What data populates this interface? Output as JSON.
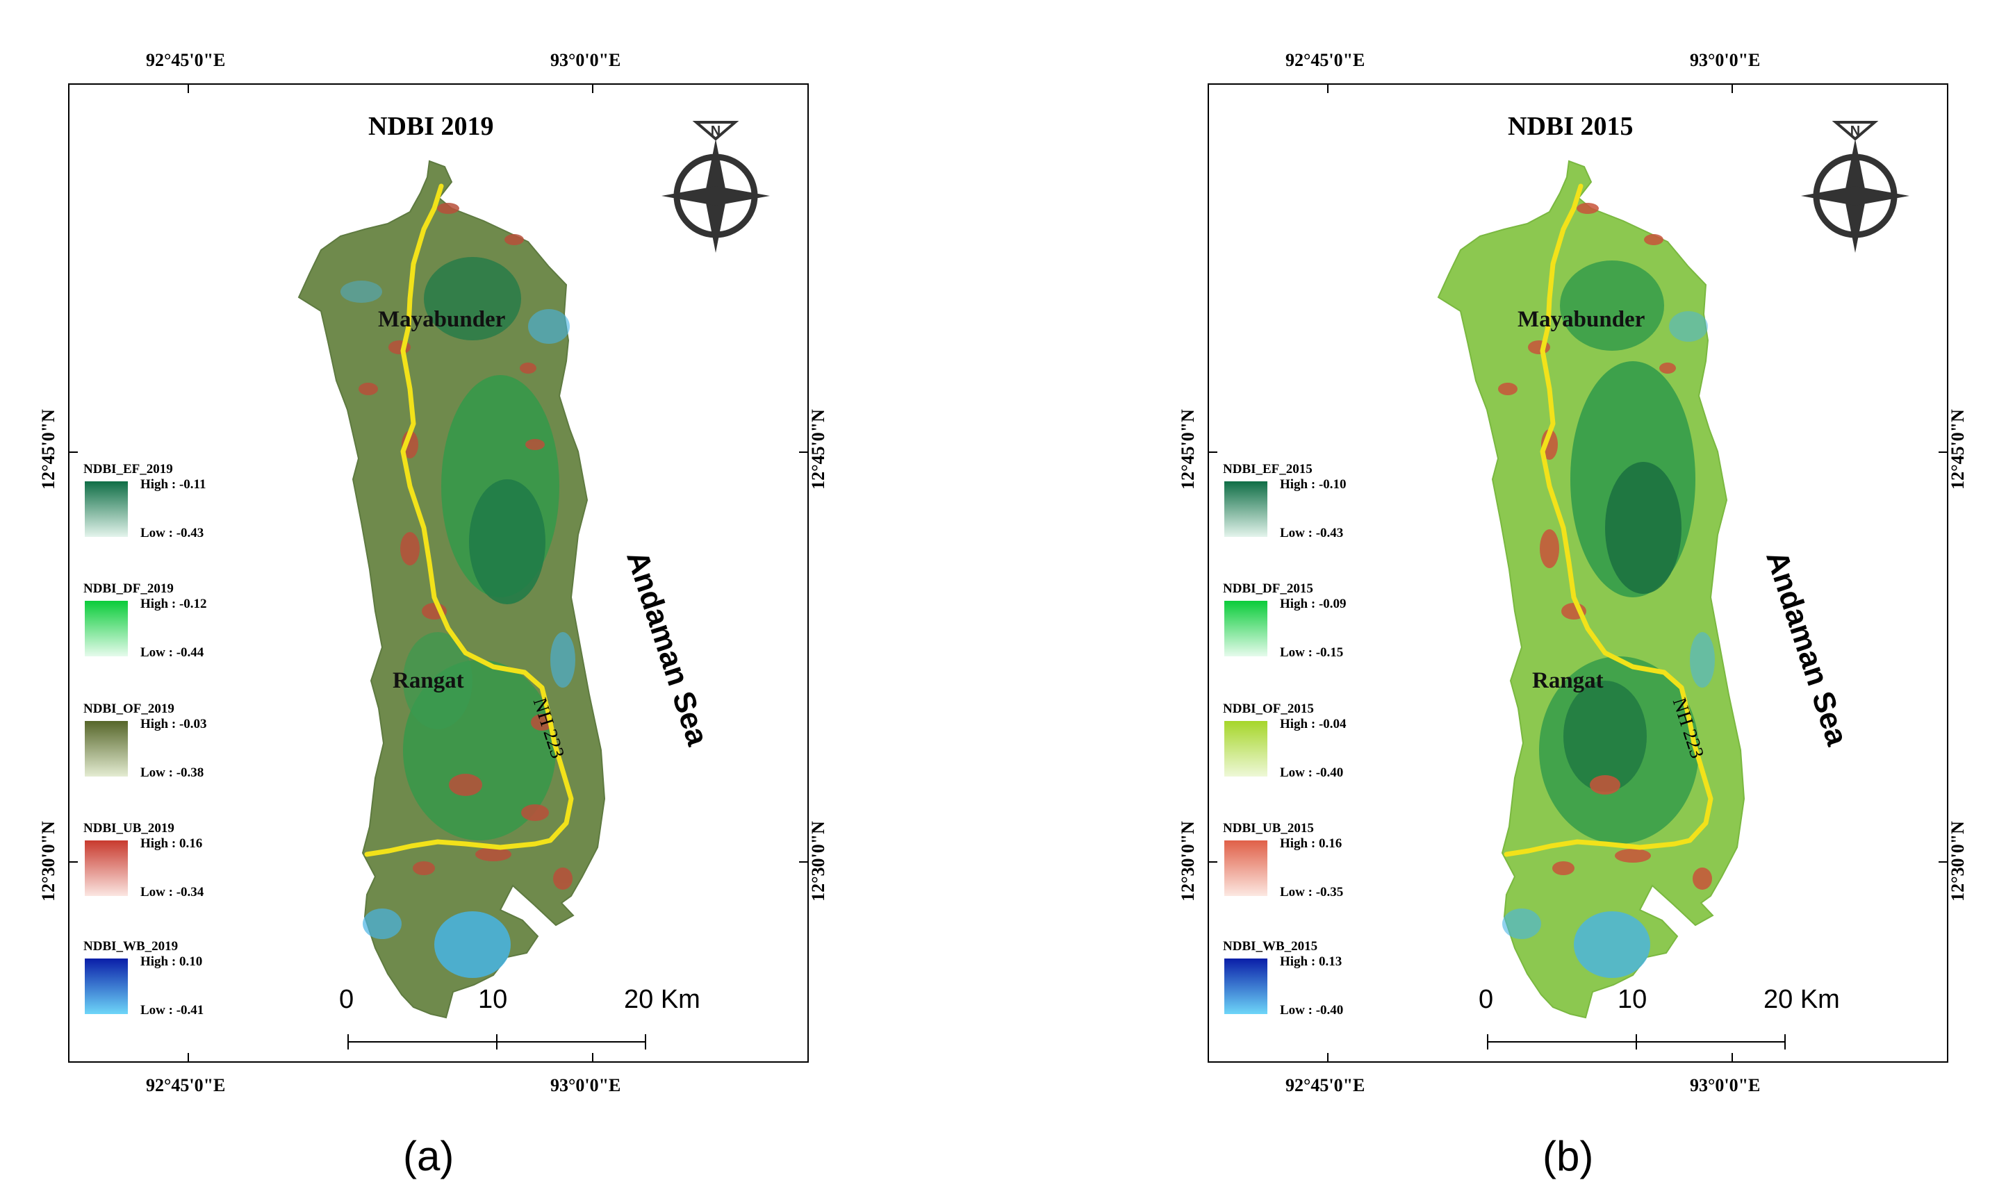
{
  "figure": {
    "panels": [
      {
        "caption": "(a)",
        "title": "NDBI 2019",
        "top_coords": [
          "92°45'0\"E",
          "93°0'0\"E"
        ],
        "bottom_coords": [
          "92°45'0\"E",
          "93°0'0\"E"
        ],
        "left_coords": [
          "12°45'0\"N",
          "12°30'0\"N"
        ],
        "right_coords": [
          "12°45'0\"N",
          "12°30'0\"N"
        ],
        "places": [
          "Mayabunder",
          "Rangat"
        ],
        "sea_label": "Andaman Sea",
        "road_label": "NH 223",
        "north_label": "N",
        "scale_labels": [
          "0",
          "10",
          "20 Km"
        ],
        "legend": [
          {
            "name": "NDBI_EF_2019",
            "high": "High : -0.11",
            "low": "Low : -0.43",
            "color_high": "#0f6e46",
            "color_low": "#e4f4ec"
          },
          {
            "name": "NDBI_DF_2019",
            "high": "High : -0.12",
            "low": "Low : -0.44",
            "color_high": "#0bcc3a",
            "color_low": "#e6fbec"
          },
          {
            "name": "NDBI_OF_2019",
            "high": "High : -0.03",
            "low": "Low : -0.38",
            "color_high": "#56662a",
            "color_low": "#e4ecd2"
          },
          {
            "name": "NDBI_UB_2019",
            "high": "High : 0.16",
            "low": "Low : -0.34",
            "color_high": "#c83a2e",
            "color_low": "#fbe6e2"
          },
          {
            "name": "NDBI_WB_2019",
            "high": "High : 0.10",
            "low": "Low : -0.41",
            "color_high": "#0a1ea8",
            "color_low": "#6ed6f8"
          }
        ]
      },
      {
        "caption": "(b)",
        "title": "NDBI 2015",
        "top_coords": [
          "92°45'0\"E",
          "93°0'0\"E"
        ],
        "bottom_coords": [
          "92°45'0\"E",
          "93°0'0\"E"
        ],
        "left_coords": [
          "12°45'0\"N",
          "12°30'0\"N"
        ],
        "right_coords": [
          "12°45'0\"N",
          "12°30'0\"N"
        ],
        "places": [
          "Mayabunder",
          "Rangat"
        ],
        "sea_label": "Andaman Sea",
        "road_label": "NH 223",
        "north_label": "N",
        "scale_labels": [
          "0",
          "10",
          "20 Km"
        ],
        "legend": [
          {
            "name": "NDBI_EF_2015",
            "high": "High : -0.10",
            "low": "Low : -0.43",
            "color_high": "#0f6e46",
            "color_low": "#e4f4ec"
          },
          {
            "name": "NDBI_DF_2015",
            "high": "High : -0.09",
            "low": "Low : -0.15",
            "color_high": "#0bcc3a",
            "color_low": "#e6fbec"
          },
          {
            "name": "NDBI_OF_2015",
            "high": "High : -0.04",
            "low": "Low : -0.40",
            "color_high": "#a6d62a",
            "color_low": "#eef8d8"
          },
          {
            "name": "NDBI_UB_2015",
            "high": "High : 0.16",
            "low": "Low : -0.35",
            "color_high": "#e06048",
            "color_low": "#fce8e2"
          },
          {
            "name": "NDBI_WB_2015",
            "high": "High : 0.13",
            "low": "Low : -0.40",
            "color_high": "#0a1ea8",
            "color_low": "#6ed6f8"
          }
        ],
        "colors": {
          "land": "#8cc850",
          "forest": "#2f9a4a",
          "dense": "#1a7040",
          "urban": "#c8543a",
          "road": "#f2e21a",
          "water": "#48b4e4"
        }
      }
    ],
    "colors_a": {
      "land": "#6f8a4c",
      "forest": "#3a9a50",
      "dense": "#1f7a48",
      "urban": "#b8503a",
      "road": "#f2e21a",
      "water": "#48b4e4"
    }
  }
}
